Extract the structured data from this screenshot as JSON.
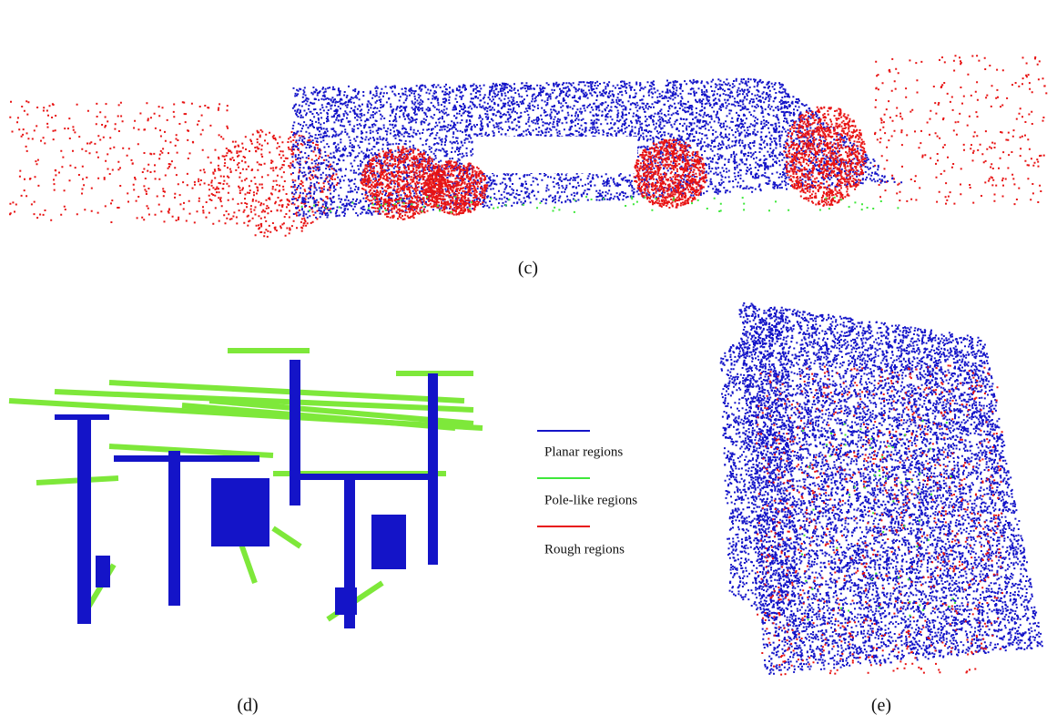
{
  "panels": [
    {
      "label": "(c)"
    },
    {
      "label": "(d)"
    },
    {
      "label": "(e)"
    }
  ],
  "legend": [
    {
      "label": "Planar regions"
    },
    {
      "label": "Pole-like regions"
    },
    {
      "label": "Rough regions"
    }
  ]
}
